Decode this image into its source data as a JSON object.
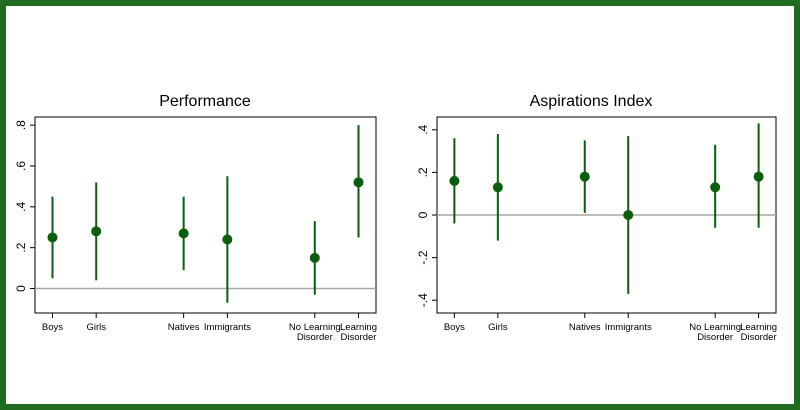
{
  "frame_color": "#1f6b1f",
  "mark_color": "#0b5e0b",
  "zero_line_color": "#a8a8a8",
  "chart_data": [
    {
      "type": "scatter",
      "title": "Performance",
      "categories": [
        {
          "lines": [
            "Boys"
          ],
          "pos": 1
        },
        {
          "lines": [
            "Girls"
          ],
          "pos": 2
        },
        {
          "lines": [
            "Natives"
          ],
          "pos": 4
        },
        {
          "lines": [
            "Immigrants"
          ],
          "pos": 5
        },
        {
          "lines": [
            "No Learning",
            "Disorder"
          ],
          "pos": 7
        },
        {
          "lines": [
            "Learning",
            "Disorder"
          ],
          "pos": 8
        }
      ],
      "estimates": [
        0.25,
        0.28,
        0.27,
        0.24,
        0.15,
        0.52
      ],
      "ci_low": [
        0.05,
        0.04,
        0.09,
        -0.07,
        -0.03,
        0.25
      ],
      "ci_high": [
        0.45,
        0.52,
        0.45,
        0.55,
        0.33,
        0.8
      ],
      "yticks": [
        0,
        0.2,
        0.4,
        0.6,
        0.8
      ],
      "ytick_labels": [
        "0",
        ".2",
        ".4",
        ".6",
        ".8"
      ],
      "ylim": [
        -0.12,
        0.84
      ],
      "xlim": [
        0.6,
        8.4
      ],
      "reference_line": 0,
      "grid": false
    },
    {
      "type": "scatter",
      "title": "Aspirations Index",
      "categories": [
        {
          "lines": [
            "Boys"
          ],
          "pos": 1
        },
        {
          "lines": [
            "Girls"
          ],
          "pos": 2
        },
        {
          "lines": [
            "Natives"
          ],
          "pos": 4
        },
        {
          "lines": [
            "Immigrants"
          ],
          "pos": 5
        },
        {
          "lines": [
            "No Learning",
            "Disorder"
          ],
          "pos": 7
        },
        {
          "lines": [
            "Learning",
            "Disorder"
          ],
          "pos": 8
        }
      ],
      "estimates": [
        0.16,
        0.13,
        0.18,
        0.0,
        0.13,
        0.18
      ],
      "ci_low": [
        -0.04,
        -0.12,
        0.01,
        -0.37,
        -0.06,
        -0.06
      ],
      "ci_high": [
        0.36,
        0.38,
        0.35,
        0.37,
        0.33,
        0.43
      ],
      "yticks": [
        -0.4,
        -0.2,
        0,
        0.2,
        0.4
      ],
      "ytick_labels": [
        "-.4",
        "-.2",
        "0",
        ".2",
        ".4"
      ],
      "ylim": [
        -0.46,
        0.46
      ],
      "xlim": [
        0.6,
        8.4
      ],
      "reference_line": 0,
      "grid": false
    }
  ]
}
